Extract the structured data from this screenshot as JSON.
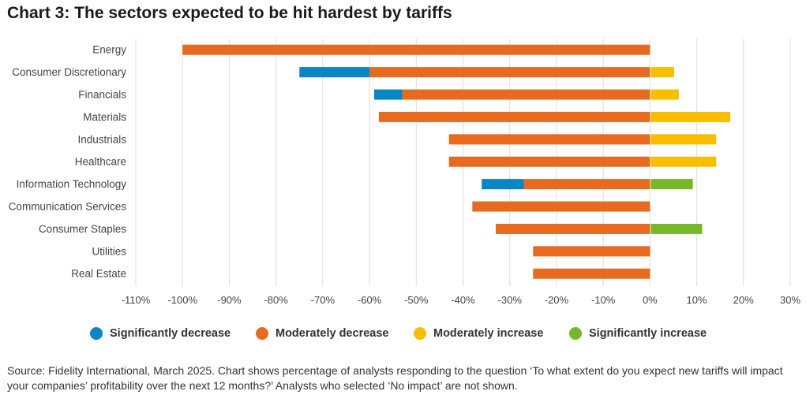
{
  "title": "Chart 3: The sectors expected to be hit hardest by tariffs",
  "source": "Source: Fidelity International, March 2025. Chart shows percentage of analysts responding to the question ‘To what extent do you expect new tariffs will impact your companies’ profitability over the next 12 months?’ Analysts who selected ‘No impact’ are not shown.",
  "chart_data": {
    "type": "bar",
    "orientation": "horizontal",
    "stacked": true,
    "categories": [
      "Energy",
      "Consumer Discretionary",
      "Financials",
      "Materials",
      "Industrials",
      "Healthcare",
      "Information Technology",
      "Communication Services",
      "Consumer Staples",
      "Utilities",
      "Real Estate"
    ],
    "series": [
      {
        "name": "Significantly decrease",
        "color": "#0a86c7",
        "values": [
          0,
          -15,
          -6,
          0,
          0,
          0,
          -9,
          0,
          0,
          0,
          0
        ]
      },
      {
        "name": "Moderately decrease",
        "color": "#e86a1f",
        "values": [
          -100,
          -60,
          -53,
          -58,
          -43,
          -43,
          -27,
          -38,
          -33,
          -25,
          -25
        ]
      },
      {
        "name": "Moderately increase",
        "color": "#f9be00",
        "values": [
          0,
          5,
          6,
          17,
          14,
          14,
          0,
          0,
          0,
          0,
          0
        ]
      },
      {
        "name": "Significantly increase",
        "color": "#76b82a",
        "values": [
          0,
          0,
          0,
          0,
          0,
          0,
          9,
          0,
          11,
          0,
          0
        ]
      }
    ],
    "xlim": [
      -110,
      30
    ],
    "xticks": [
      "-110%",
      "-100%",
      "-90%",
      "-80%",
      "-70%",
      "-60%",
      "-50%",
      "-40%",
      "-30%",
      "-20%",
      "-10%",
      "0%",
      "10%",
      "20%",
      "30%"
    ],
    "xlabel": "",
    "ylabel": "",
    "grid": "vertical",
    "legend": "bottom"
  }
}
